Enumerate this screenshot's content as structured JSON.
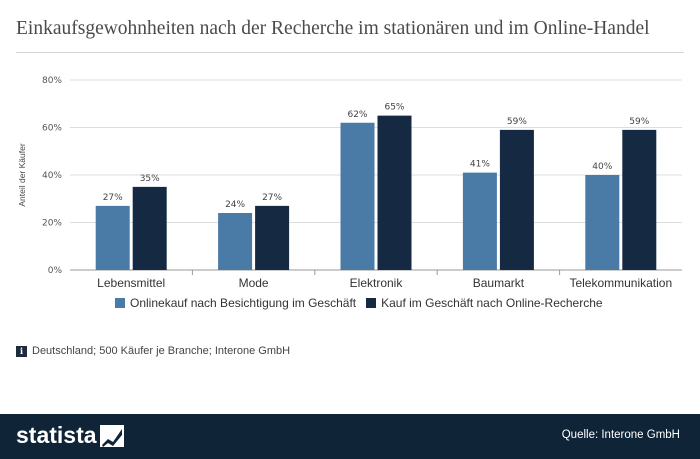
{
  "title": "Einkaufsgewohnheiten nach der Recherche im stationären und im Online-Handel",
  "note": "Deutschland; 500 Käufer je Branche; Interone GmbH",
  "info_icon_glyph": "i",
  "footer": {
    "logo_text": "statista",
    "source": "Quelle: Interone GmbH"
  },
  "colors": {
    "series1": "#4a7ba7",
    "series2": "#152a42",
    "footer_bg": "#0f2537",
    "grid": "#dddddd"
  },
  "chart_data": {
    "type": "bar",
    "categories": [
      "Lebensmittel",
      "Mode",
      "Elektronik",
      "Baumarkt",
      "Telekommunikation"
    ],
    "series": [
      {
        "name": "Onlinekauf nach Besichtigung im Geschäft",
        "values": [
          27,
          24,
          62,
          41,
          40
        ]
      },
      {
        "name": "Kauf im Geschäft nach Online-Recherche",
        "values": [
          35,
          27,
          65,
          59,
          59
        ]
      }
    ],
    "data_labels": [
      [
        "27%",
        "24%",
        "62%",
        "41%",
        "40%"
      ],
      [
        "35%",
        "27%",
        "65%",
        "59%",
        "59%"
      ]
    ],
    "ylabel": "Anteil der Käufer",
    "ylim": [
      0,
      80
    ],
    "yticks": [
      0,
      20,
      40,
      60,
      80
    ],
    "ytick_labels": [
      "0%",
      "20%",
      "40%",
      "60%",
      "80%"
    ],
    "grid": true,
    "legend": "bottom"
  }
}
